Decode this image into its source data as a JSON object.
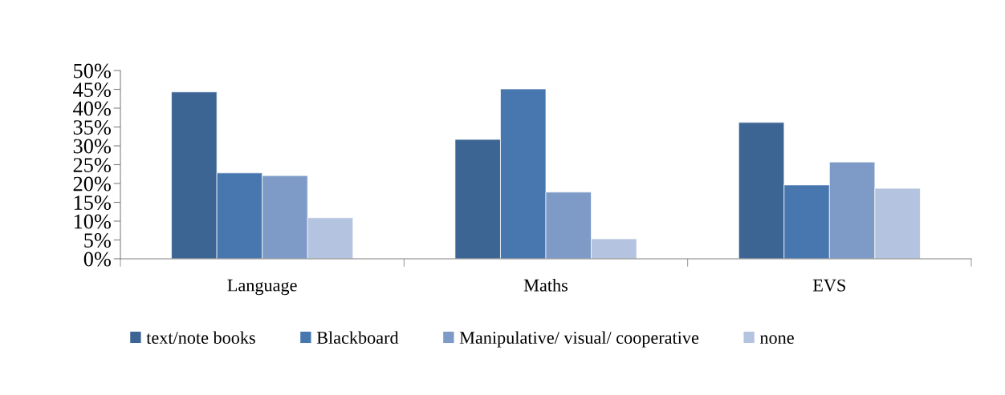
{
  "chart_data": {
    "type": "bar",
    "categories": [
      "Language",
      "Maths",
      "EVS"
    ],
    "series": [
      {
        "name": "text/note books",
        "color": "#3c6594",
        "values": [
          44.3,
          31.7,
          36.2
        ]
      },
      {
        "name": "Blackboard",
        "color": "#4877af",
        "values": [
          22.8,
          45.1,
          19.6
        ]
      },
      {
        "name": "Manipulative/ visual/ cooperative",
        "color": "#7e9bc8",
        "values": [
          22.1,
          17.7,
          25.7
        ]
      },
      {
        "name": "none",
        "color": "#b4c3df",
        "values": [
          10.9,
          5.3,
          18.7
        ]
      }
    ],
    "ylim": [
      0,
      50
    ],
    "yticks": [
      {
        "value": 0,
        "label": "0%"
      },
      {
        "value": 5,
        "label": "5%"
      },
      {
        "value": 10,
        "label": "10%"
      },
      {
        "value": 15,
        "label": "15%"
      },
      {
        "value": 20,
        "label": "20%"
      },
      {
        "value": 25,
        "label": "25%"
      },
      {
        "value": 30,
        "label": "30%"
      },
      {
        "value": 35,
        "label": "35%"
      },
      {
        "value": 40,
        "label": "40%"
      },
      {
        "value": 45,
        "label": "45%"
      },
      {
        "value": 50,
        "label": "50%"
      }
    ],
    "grid": false,
    "legend": "bottom"
  }
}
